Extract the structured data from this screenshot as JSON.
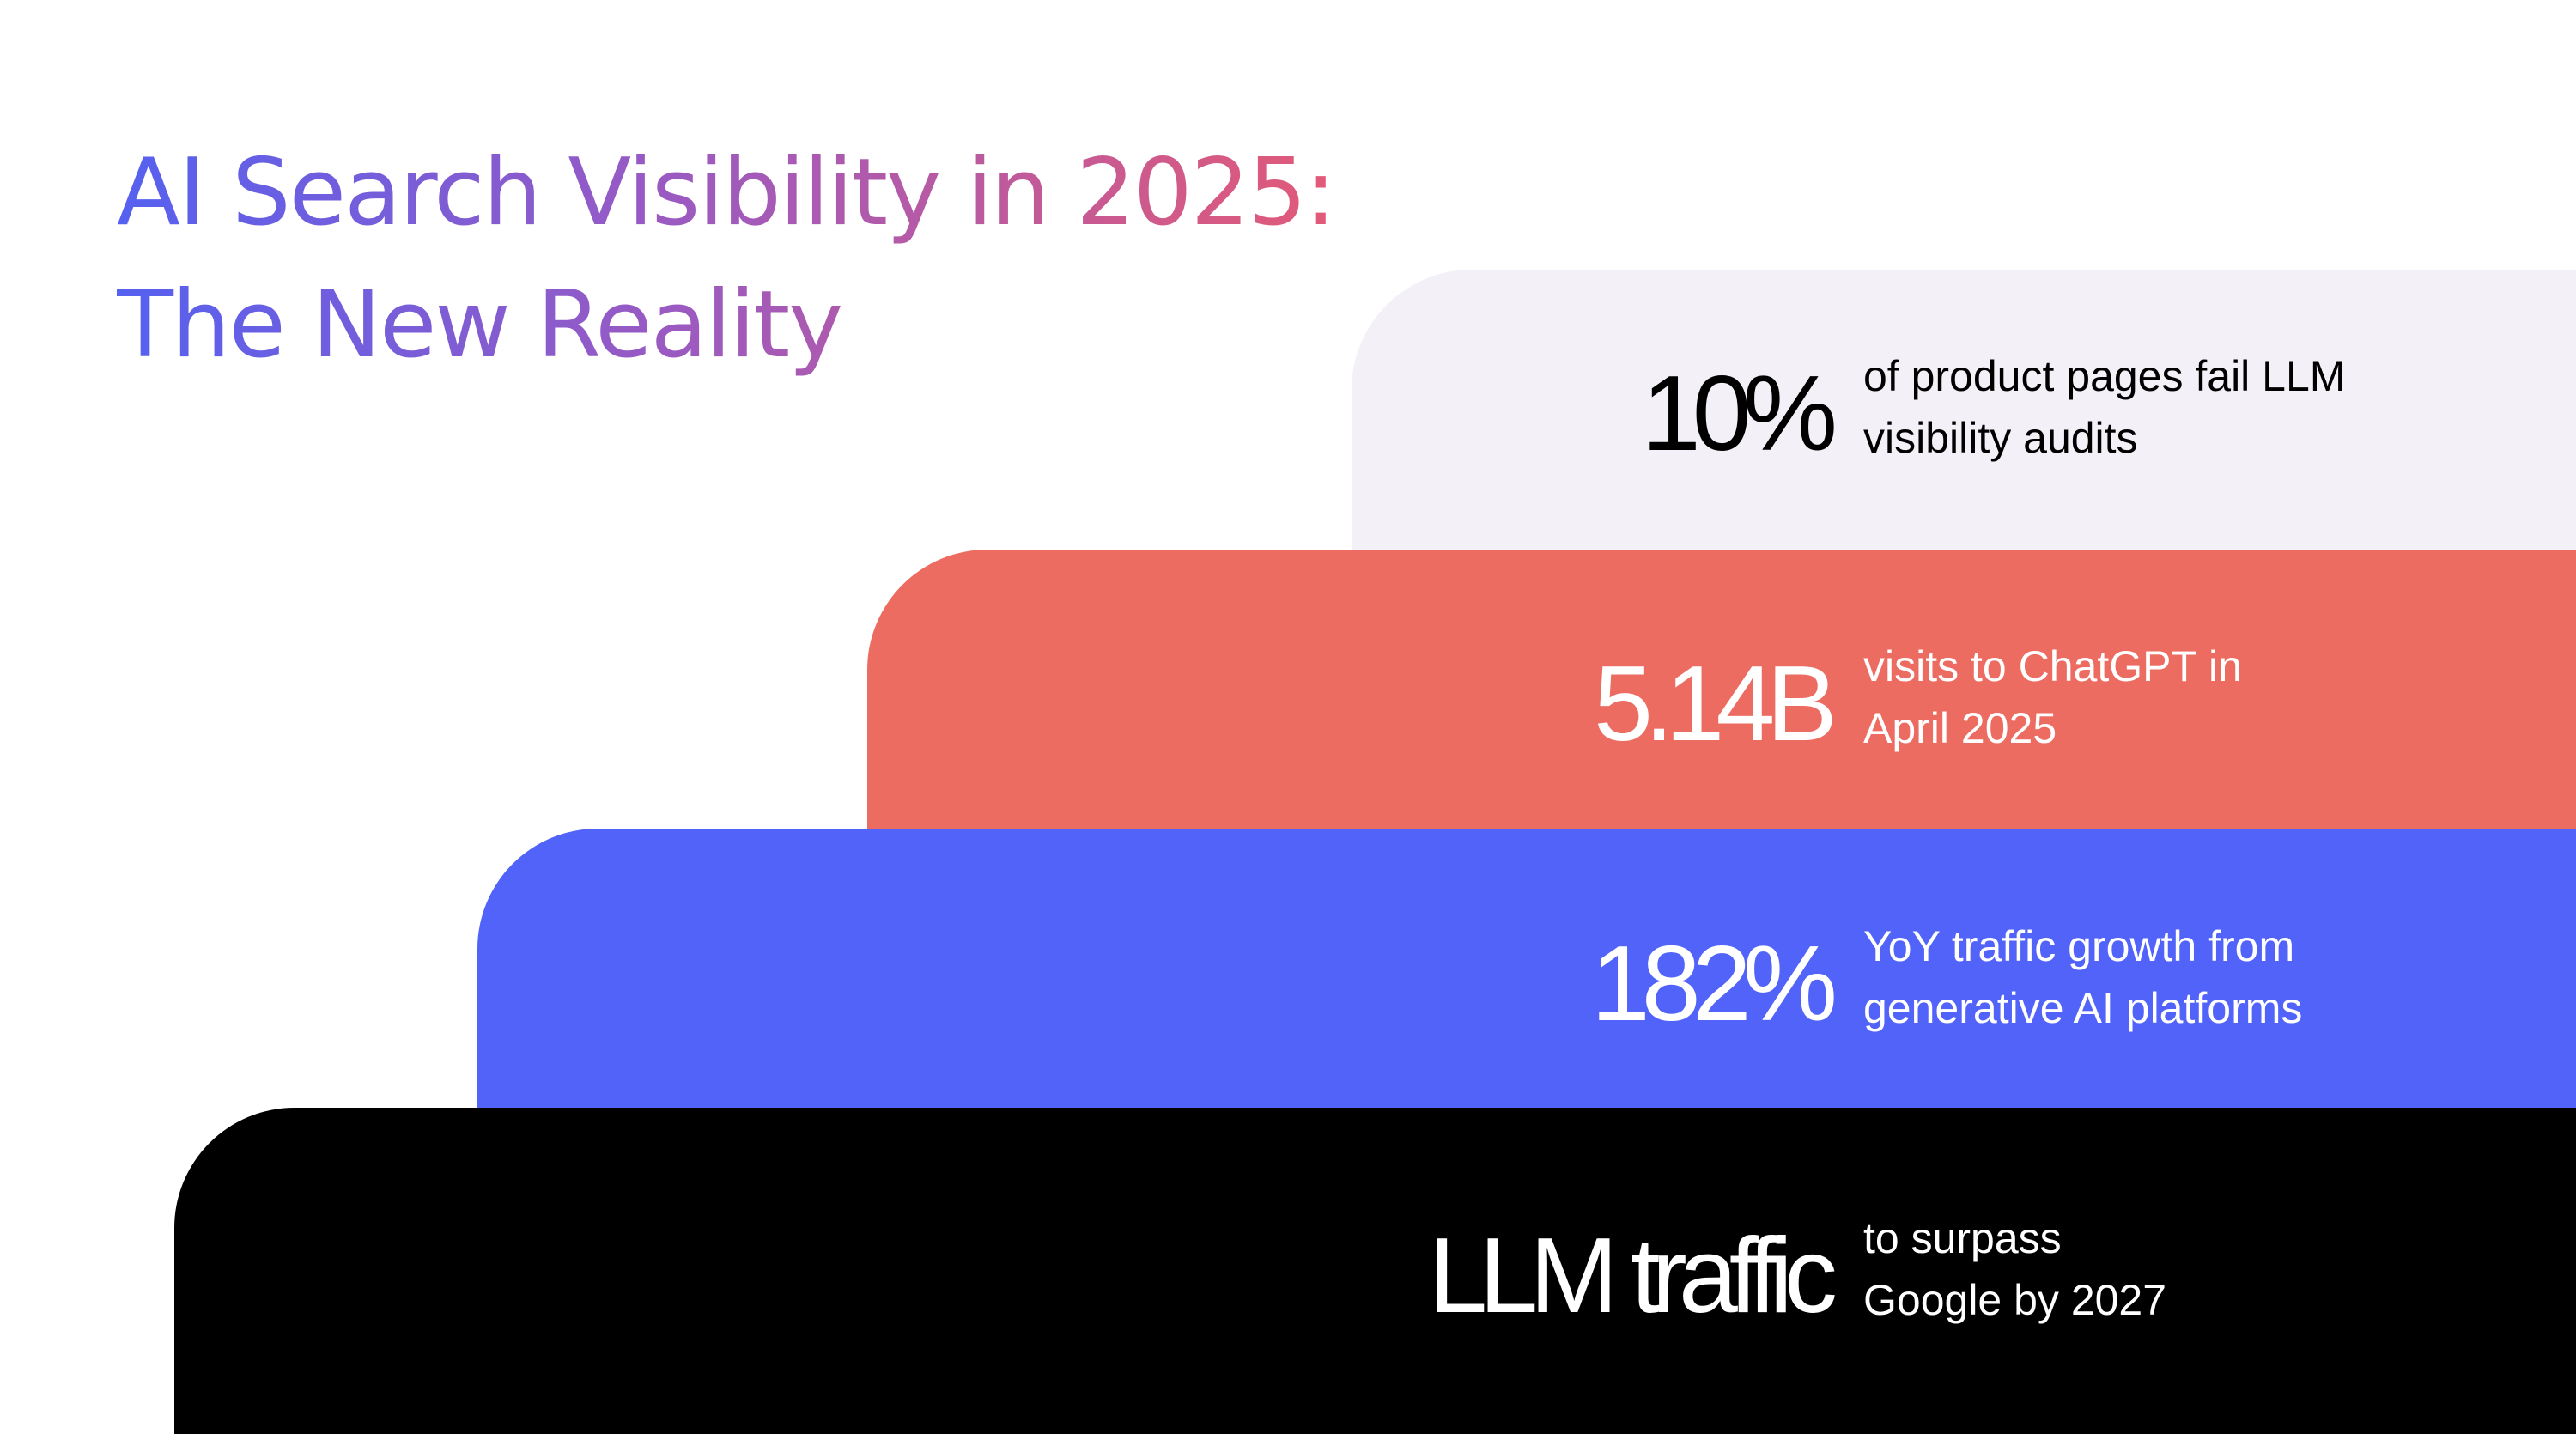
{
  "title": {
    "line1": "AI Search Visibility in 2025:",
    "line2": "The New Reality"
  },
  "colors": {
    "title_gradient_start": "#5561f0",
    "title_gradient_end": "#e25a77",
    "step1_bg": "#f3f0f7",
    "step2_bg": "#ed6c61",
    "step3_bg": "#5163f9",
    "step4_bg": "#000000"
  },
  "stats": [
    {
      "value": "10%",
      "desc_line1": "of product pages fail LLM",
      "desc_line2": "visibility audits",
      "bg": "#f3f0f7",
      "text_color": "#000000"
    },
    {
      "value": "5.14B",
      "desc_line1": "visits to ChatGPT in",
      "desc_line2": "April 2025",
      "bg": "#ed6c61",
      "text_color": "#ffffff"
    },
    {
      "value": "182%",
      "desc_line1": "YoY traffic growth from",
      "desc_line2": "generative AI platforms",
      "bg": "#5163f9",
      "text_color": "#ffffff"
    },
    {
      "value": "LLM traffic",
      "desc_line1": "to surpass",
      "desc_line2": "Google by 2027",
      "bg": "#000000",
      "text_color": "#ffffff"
    }
  ]
}
